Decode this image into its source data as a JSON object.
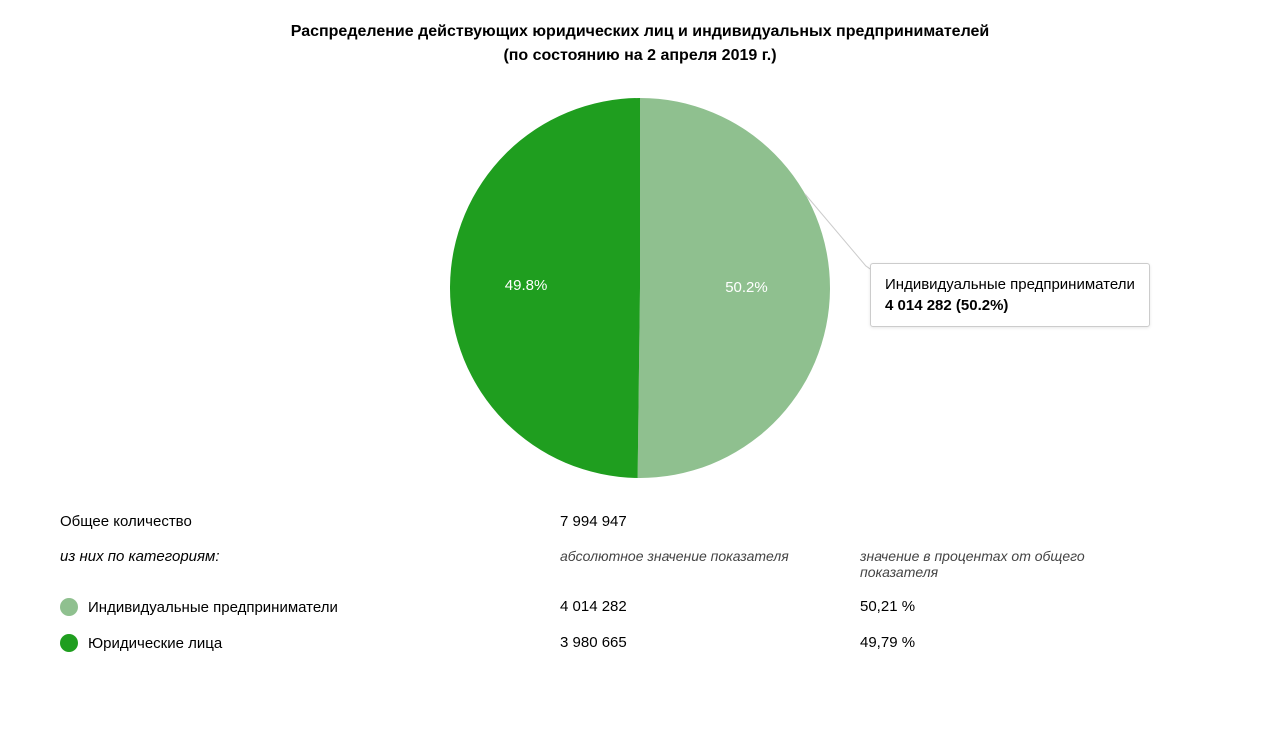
{
  "title": {
    "line1": "Распределение действующих юридических лиц и индивидуальных предпринимателей",
    "line2": "(по состоянию на 2 апреля 2019 г.)",
    "fontsize": 16,
    "fontweight": "bold",
    "color": "#000000"
  },
  "chart": {
    "type": "pie",
    "diameter": 380,
    "background_color": "#ffffff",
    "slices": [
      {
        "name": "Индивидуальные предприниматели",
        "value": 4014282,
        "percent": 50.2,
        "percent_label": "50.2%",
        "color": "#8fc08f",
        "label_color": "#ffffff"
      },
      {
        "name": "Юридические лица",
        "value": 3980665,
        "percent": 49.8,
        "percent_label": "49.8%",
        "color": "#1f9e1f",
        "label_color": "#ffffff"
      }
    ],
    "label_fontsize": 15,
    "start_angle_deg": 0
  },
  "tooltip": {
    "title": "Индивидуальные предприниматели",
    "value": "4 014 282 (50.2%)",
    "border_color": "#cccccc",
    "background_color": "#ffffff",
    "fontsize": 15
  },
  "table": {
    "total_label": "Общее количество",
    "total_value": "7 994 947",
    "category_label": "из них по категориям:",
    "header_abs": "абсолютное значение показателя",
    "header_pct": "значение в процентах от общего показателя",
    "rows": [
      {
        "swatch_color": "#8fc08f",
        "label": "Индивидуальные предприниматели",
        "abs": "4 014 282",
        "pct": "50,21 %"
      },
      {
        "swatch_color": "#1f9e1f",
        "label": "Юридические лица",
        "abs": "3 980 665",
        "pct": "49,79 %"
      }
    ],
    "fontsize": 15,
    "text_color": "#000000",
    "header_color": "#444444"
  }
}
